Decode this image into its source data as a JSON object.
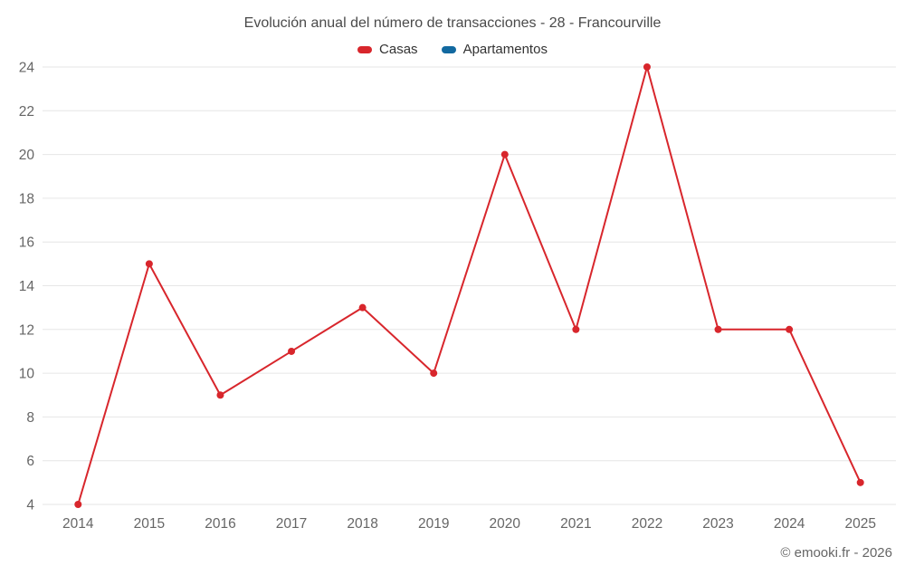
{
  "title": "Evolución anual del número de transacciones - 28 - Francourville",
  "credits": "© emooki.fr - 2026",
  "legend": [
    {
      "label": "Casas",
      "color": "#d8262c"
    },
    {
      "label": "Apartamentos",
      "color": "#1269a0"
    }
  ],
  "colors": {
    "grid": "#e6e6e6",
    "axis_text": "#666666",
    "title_text": "#4a4a4a"
  },
  "chart_data": {
    "type": "line",
    "title": "Evolución anual del número de transacciones - 28 - Francourville",
    "x": [
      2014,
      2015,
      2016,
      2017,
      2018,
      2019,
      2020,
      2021,
      2022,
      2023,
      2024,
      2025
    ],
    "series": [
      {
        "name": "Casas",
        "color": "#d8262c",
        "values": [
          4,
          15,
          9,
          11,
          13,
          10,
          20,
          12,
          24,
          12,
          12,
          5
        ]
      },
      {
        "name": "Apartamentos",
        "color": "#1269a0",
        "values": []
      }
    ],
    "xlabel": "",
    "ylabel": "",
    "ylim": [
      4,
      24
    ],
    "ytick_step": 2,
    "grid": true,
    "legend_position": "top"
  }
}
